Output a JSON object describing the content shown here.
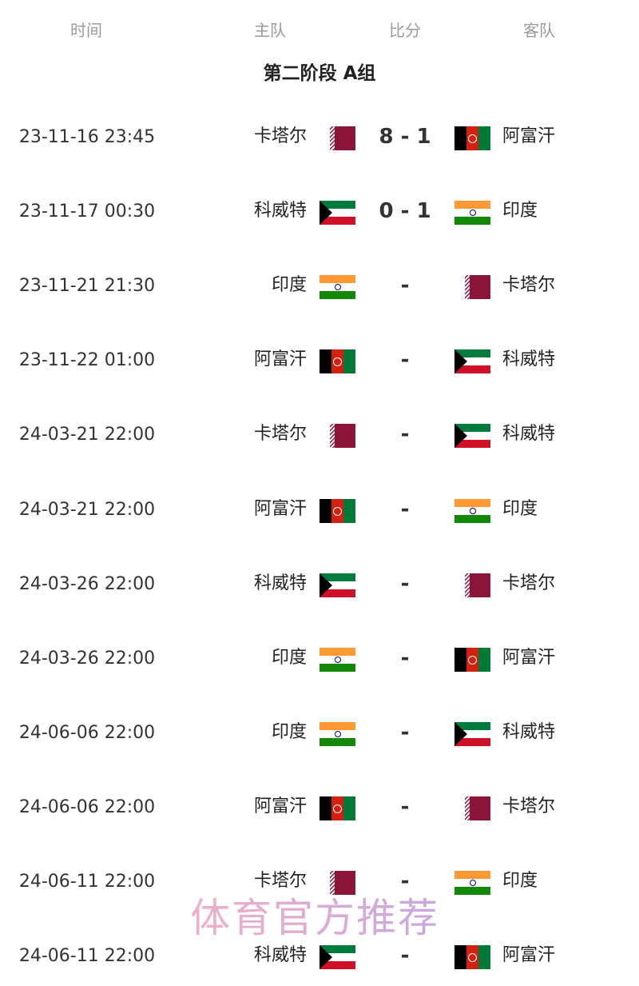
{
  "header": {
    "time": "时间",
    "home": "主队",
    "score": "比分",
    "away": "客队"
  },
  "group_title": "第二阶段 A组",
  "teams": {
    "qat": "卡塔尔",
    "afg": "阿富汗",
    "kuw": "科威特",
    "ind": "印度"
  },
  "flag_colors": {
    "qat": "#8a1538",
    "afg": [
      "#000000",
      "#d32011",
      "#007a36"
    ],
    "ind": [
      "#ff9933",
      "#ffffff",
      "#138808"
    ],
    "kuw": [
      "#007a3d",
      "#ffffff",
      "#ce1126",
      "#000000"
    ]
  },
  "matches": [
    {
      "time": "23-11-16 23:45",
      "home": "卡塔尔",
      "home_flag": "qat",
      "score": "8 - 1",
      "away": "阿富汗",
      "away_flag": "afg"
    },
    {
      "time": "23-11-17 00:30",
      "home": "科威特",
      "home_flag": "kuw",
      "score": "0 - 1",
      "away": "印度",
      "away_flag": "ind"
    },
    {
      "time": "23-11-21 21:30",
      "home": "印度",
      "home_flag": "ind",
      "score": "-",
      "away": "卡塔尔",
      "away_flag": "qat"
    },
    {
      "time": "23-11-22 01:00",
      "home": "阿富汗",
      "home_flag": "afg",
      "score": "-",
      "away": "科威特",
      "away_flag": "kuw"
    },
    {
      "time": "24-03-21 22:00",
      "home": "卡塔尔",
      "home_flag": "qat",
      "score": "-",
      "away": "科威特",
      "away_flag": "kuw"
    },
    {
      "time": "24-03-21 22:00",
      "home": "阿富汗",
      "home_flag": "afg",
      "score": "-",
      "away": "印度",
      "away_flag": "ind"
    },
    {
      "time": "24-03-26 22:00",
      "home": "科威特",
      "home_flag": "kuw",
      "score": "-",
      "away": "卡塔尔",
      "away_flag": "qat"
    },
    {
      "time": "24-03-26 22:00",
      "home": "印度",
      "home_flag": "ind",
      "score": "-",
      "away": "阿富汗",
      "away_flag": "afg"
    },
    {
      "time": "24-06-06 22:00",
      "home": "印度",
      "home_flag": "ind",
      "score": "-",
      "away": "科威特",
      "away_flag": "kuw"
    },
    {
      "time": "24-06-06 22:00",
      "home": "阿富汗",
      "home_flag": "afg",
      "score": "-",
      "away": "卡塔尔",
      "away_flag": "qat"
    },
    {
      "time": "24-06-11 22:00",
      "home": "卡塔尔",
      "home_flag": "qat",
      "score": "-",
      "away": "印度",
      "away_flag": "ind"
    },
    {
      "time": "24-06-11 22:00",
      "home": "科威特",
      "home_flag": "kuw",
      "score": "-",
      "away": "阿富汗",
      "away_flag": "afg"
    }
  ],
  "watermark": "体育官方推荐"
}
